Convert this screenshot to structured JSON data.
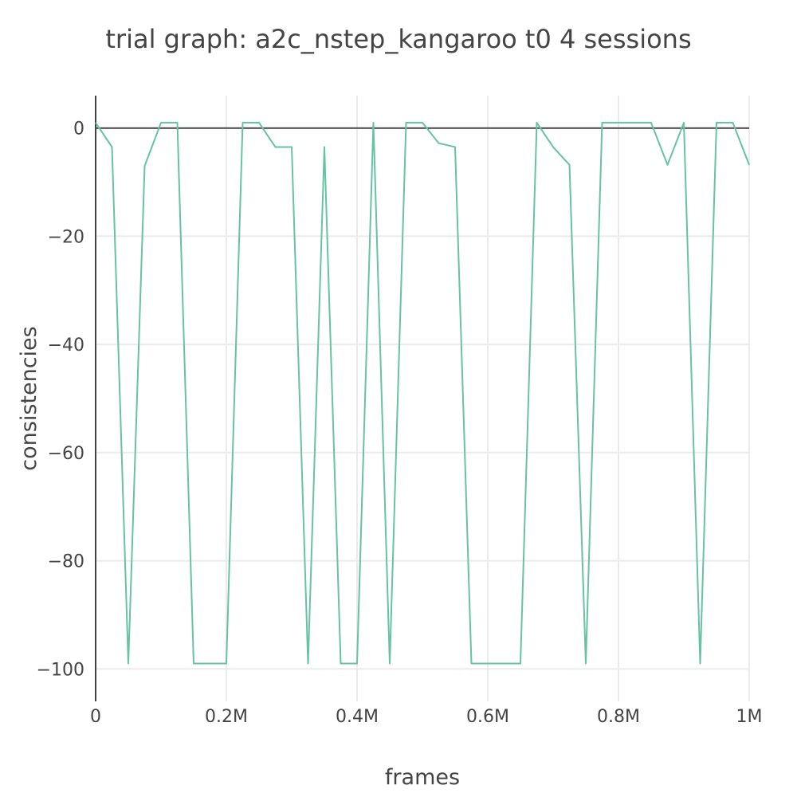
{
  "chart_data": {
    "type": "line",
    "title": "trial graph: a2c_nstep_kangaroo t0 4 sessions",
    "xlabel": "frames",
    "ylabel": "consistencies",
    "xlim": [
      0,
      1000000
    ],
    "ylim": [
      -106,
      6
    ],
    "x_ticks": [
      {
        "value": 0,
        "label": "0"
      },
      {
        "value": 200000,
        "label": "0.2M"
      },
      {
        "value": 400000,
        "label": "0.4M"
      },
      {
        "value": 600000,
        "label": "0.6M"
      },
      {
        "value": 800000,
        "label": "0.8M"
      },
      {
        "value": 1000000,
        "label": "1M"
      }
    ],
    "y_ticks": [
      {
        "value": 0,
        "label": "0"
      },
      {
        "value": -20,
        "label": "−20"
      },
      {
        "value": -40,
        "label": "−40"
      },
      {
        "value": -60,
        "label": "−60"
      },
      {
        "value": -80,
        "label": "−80"
      },
      {
        "value": -100,
        "label": "−100"
      }
    ],
    "grid": true,
    "zero_line": true,
    "legend": "none",
    "series": [
      {
        "color": "#66c2a5",
        "x": [
          0,
          25000,
          50000,
          75000,
          100000,
          125000,
          150000,
          175000,
          200000,
          225000,
          250000,
          275000,
          300000,
          325000,
          350000,
          375000,
          400000,
          425000,
          450000,
          475000,
          500000,
          525000,
          550000,
          575000,
          600000,
          625000,
          650000,
          675000,
          700000,
          725000,
          750000,
          775000,
          800000,
          825000,
          850000,
          875000,
          900000,
          925000,
          950000,
          975000,
          1000000
        ],
        "y": [
          1,
          -3.5,
          -99,
          -7,
          1,
          1,
          -99,
          -99,
          -99,
          1,
          1,
          -3.5,
          -3.5,
          -99,
          -3.5,
          -99,
          -99,
          1,
          -99,
          1,
          1,
          -2.8,
          -3.5,
          -99,
          -99,
          -99,
          -99,
          1,
          -3.5,
          -6.8,
          -99,
          1,
          1,
          1,
          1,
          -6.8,
          1,
          -99,
          1,
          1,
          -6.8
        ]
      }
    ]
  }
}
